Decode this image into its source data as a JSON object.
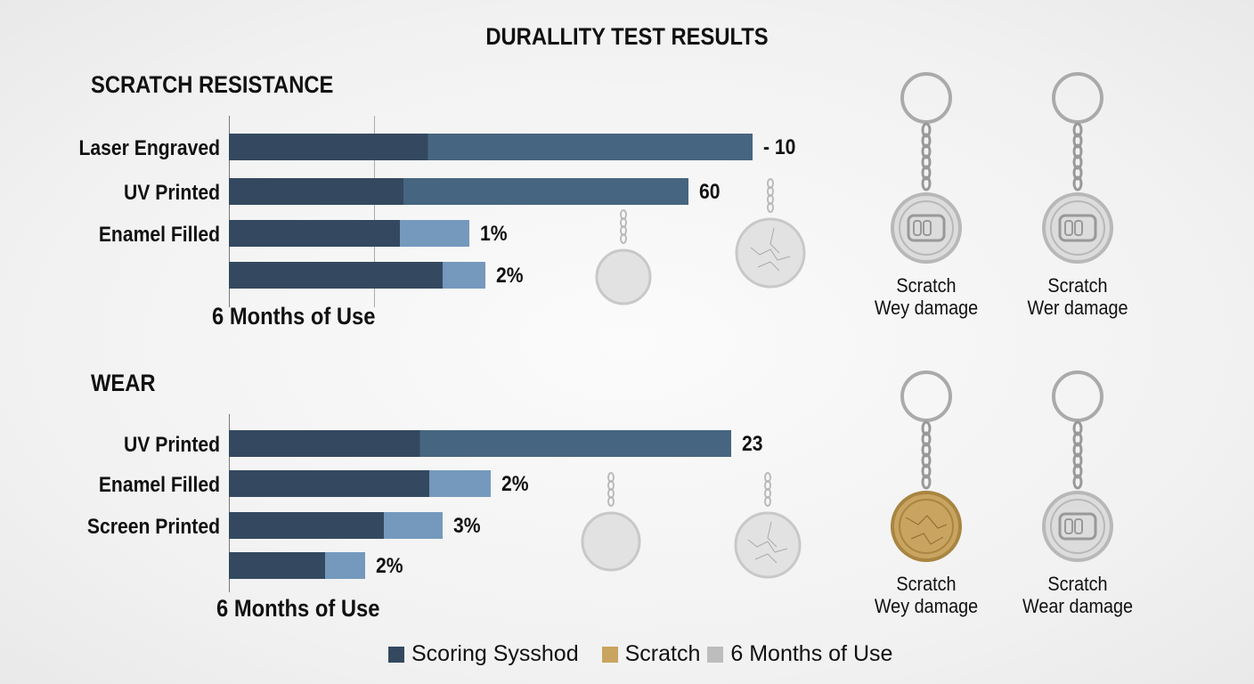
{
  "title": "DURALLITY TEST RESULTS",
  "colors": {
    "dark": "#34495f",
    "mid": "#466580",
    "light": "#7499bd",
    "gold": "#c9a461",
    "gray": "#bdbdbd"
  },
  "chart_data": [
    {
      "type": "bar",
      "title": "SCRATCH RESISTANCE",
      "xlabel": "6 Months of Use",
      "xlim": [
        0,
        100
      ],
      "categories": [
        "Laser Engraved",
        "UV Printed",
        "Enamel Filled",
        ""
      ],
      "series": [
        {
          "name": "Scoring Sysshod",
          "values": [
            98,
            86,
            32,
            40
          ]
        },
        {
          "name": "6 Months of Use",
          "values": [
            0,
            0,
            13,
            8
          ]
        }
      ],
      "data_labels": [
        "- 10",
        "60",
        "1%",
        "2%"
      ]
    },
    {
      "type": "bar",
      "title": "WEAR",
      "xlabel": "6 Months of Use",
      "xlim": [
        0,
        100
      ],
      "categories": [
        "UV Printed",
        "Enamel Filled",
        "Screen Printed",
        ""
      ],
      "series": [
        {
          "name": "Scoring Sysshod",
          "values": [
            94,
            37.5,
            29,
            18
          ]
        },
        {
          "name": "6 Months of Use",
          "values": [
            0,
            11.5,
            11,
            7.5
          ]
        }
      ],
      "data_labels": [
        "23",
        "2%",
        "3%",
        "2%"
      ]
    }
  ],
  "keychains": [
    {
      "line1": "Scratch",
      "line2": "Wey damage",
      "type": "logo"
    },
    {
      "line1": "Scratch",
      "line2": "Wer damage",
      "type": "logo"
    },
    {
      "line1": "Scratch",
      "line2": "Wey damage",
      "type": "gold"
    },
    {
      "line1": "Scratch",
      "line2": "Wear damage",
      "type": "logo"
    }
  ],
  "legend": [
    "Scoring Sysshod",
    "Scratch",
    "6 Months of Use"
  ]
}
